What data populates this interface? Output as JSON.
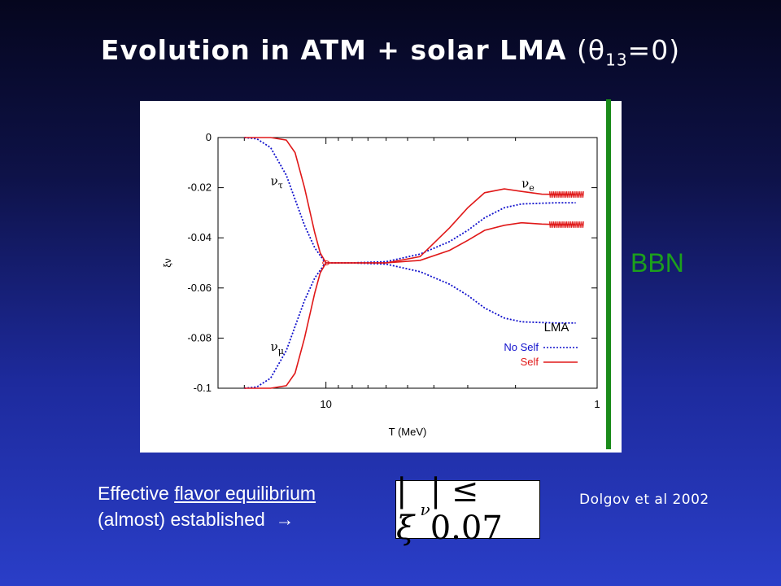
{
  "slide": {
    "title_main": "Evolution in ATM + solar LMA",
    "title_theta": "θ",
    "title_theta_sub": "13",
    "title_theta_eq": "=0",
    "bbn_label": "BBN",
    "caption_prefix": "Effective ",
    "caption_underlined": "flavor equilibrium",
    "caption_line2": "(almost) established",
    "caption_arrow": "→",
    "formula_text": "|ξ",
    "formula_sub": "ν",
    "formula_rhs": "| ≤ 0.07",
    "citation": "Dolgov et al 2002",
    "colors": {
      "background_top": "#05061e",
      "background_bottom": "#2a3ec8",
      "bbn_green": "#1a8a1a"
    }
  },
  "chart_data": {
    "type": "line",
    "xlabel": "T (MeV)",
    "ylabel": "ξν",
    "x_scale": "log, reversed",
    "xlim": [
      25,
      1
    ],
    "ylim": [
      -0.1,
      0
    ],
    "x_ticks": [
      10,
      1
    ],
    "y_ticks": [
      0,
      -0.02,
      -0.04,
      -0.06,
      -0.08,
      -0.1
    ],
    "y_tick_labels": [
      "0",
      "-0.02",
      "-0.04",
      "-0.06",
      "-0.08",
      "-0.1"
    ],
    "x_tick_labels": [
      "10",
      "1"
    ],
    "legend": {
      "title": "LMA",
      "placement": "bottom-right"
    },
    "annotations": [
      {
        "label": "ν_τ",
        "x": 16,
        "y": -0.019
      },
      {
        "label": "ν_μ",
        "x": 16,
        "y": -0.085
      },
      {
        "label": "ν_e",
        "x": 1.9,
        "y": -0.02
      }
    ],
    "series": [
      {
        "name": "No Self",
        "style": "dotted",
        "color": "#1010cc",
        "x": [
          20,
          18,
          16,
          14,
          12,
          11,
          10.2,
          10,
          8,
          6,
          4.5,
          3.5,
          3.0,
          2.6,
          2.2,
          1.9,
          1.6,
          1.4,
          1.2
        ],
        "y": [
          0,
          -0.0005,
          -0.004,
          -0.015,
          -0.035,
          -0.044,
          -0.049,
          -0.05,
          -0.05,
          -0.0495,
          -0.0465,
          -0.0415,
          -0.037,
          -0.032,
          -0.028,
          -0.0265,
          -0.0262,
          -0.026,
          -0.026
        ]
      },
      {
        "name": "No Self",
        "style": "dotted",
        "color": "#1010cc",
        "x": [
          20,
          18,
          16,
          14,
          12,
          11,
          10.2,
          10,
          8,
          6,
          4.5,
          3.5,
          3.0,
          2.6,
          2.2,
          1.9,
          1.6,
          1.4,
          1.2
        ],
        "y": [
          -0.1,
          -0.0995,
          -0.096,
          -0.085,
          -0.065,
          -0.056,
          -0.051,
          -0.05,
          -0.05,
          -0.0505,
          -0.0535,
          -0.0585,
          -0.063,
          -0.068,
          -0.072,
          -0.0735,
          -0.0738,
          -0.074,
          -0.074
        ]
      },
      {
        "name": "Self",
        "style": "solid",
        "color": "#e01818",
        "x": [
          20,
          16,
          14,
          13,
          12,
          11,
          10.5,
          10,
          8,
          6,
          4.5,
          3.5,
          3.0,
          2.6,
          2.2,
          1.9,
          1.6,
          1.4,
          1.2
        ],
        "y": [
          0,
          0,
          -0.001,
          -0.006,
          -0.02,
          -0.038,
          -0.046,
          -0.05,
          -0.05,
          -0.05,
          -0.049,
          -0.045,
          -0.041,
          -0.037,
          -0.035,
          -0.034,
          -0.0345,
          -0.0347,
          -0.0347
        ]
      },
      {
        "name": "Self",
        "style": "solid",
        "color": "#e01818",
        "x": [
          20,
          16,
          14,
          13,
          12,
          11,
          10.5,
          10,
          8,
          6,
          4.5,
          3.5,
          3.0,
          2.6,
          2.2,
          1.9,
          1.6,
          1.4,
          1.2
        ],
        "y": [
          -0.1,
          -0.1,
          -0.099,
          -0.094,
          -0.08,
          -0.062,
          -0.054,
          -0.05,
          -0.05,
          -0.05,
          -0.0475,
          -0.036,
          -0.028,
          -0.022,
          -0.0205,
          -0.0215,
          -0.0226,
          -0.0227,
          -0.0227
        ]
      }
    ]
  }
}
